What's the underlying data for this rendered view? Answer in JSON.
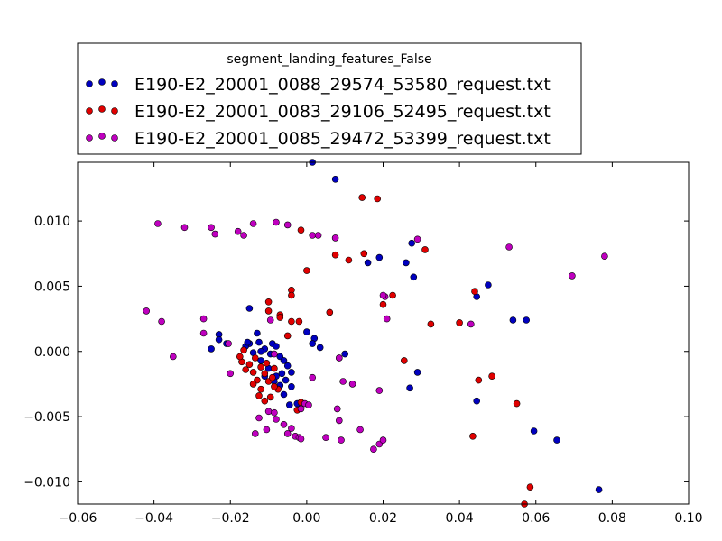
{
  "chart_data": {
    "type": "scatter",
    "title": "",
    "xlabel": "",
    "ylabel": "",
    "xlim": [
      -0.06,
      0.1
    ],
    "ylim": [
      -0.0117,
      0.0145
    ],
    "x_ticks": [
      -0.06,
      -0.04,
      -0.02,
      0.0,
      0.02,
      0.04,
      0.06,
      0.08,
      0.1
    ],
    "x_tick_labels": [
      "−0.06",
      "−0.04",
      "−0.02",
      "0.00",
      "0.02",
      "0.04",
      "0.06",
      "0.08",
      "0.10"
    ],
    "y_ticks": [
      -0.01,
      -0.005,
      0.0,
      0.005,
      0.01
    ],
    "y_tick_labels": [
      "−0.010",
      "−0.005",
      "0.000",
      "0.005",
      "0.010"
    ],
    "grid": false,
    "legend": {
      "title": "segment_landing_features_False",
      "position": "above plot, top-left"
    },
    "series": [
      {
        "name": "E190-E2_20001_0088_29574_53580_request.txt",
        "color": "#0000bf",
        "points": [
          [
            0.0015,
            0.0145
          ],
          [
            0.0075,
            0.0132
          ],
          [
            0.019,
            0.0072
          ],
          [
            0.016,
            0.0068
          ],
          [
            0.0275,
            0.0083
          ],
          [
            0.026,
            0.0068
          ],
          [
            0.028,
            0.0057
          ],
          [
            0.0475,
            0.0051
          ],
          [
            0.0445,
            0.0042
          ],
          [
            0.054,
            0.0024
          ],
          [
            0.0575,
            0.0024
          ],
          [
            0.0445,
            -0.0038
          ],
          [
            0.0595,
            -0.0061
          ],
          [
            0.0655,
            -0.0068
          ],
          [
            0.0765,
            -0.0106
          ],
          [
            0.029,
            -0.0016
          ],
          [
            0.027,
            -0.0028
          ],
          [
            -0.015,
            0.0033
          ],
          [
            -0.023,
            0.0013
          ],
          [
            -0.023,
            0.0009
          ],
          [
            -0.021,
            0.0006
          ],
          [
            -0.025,
            0.0002
          ],
          [
            -0.015,
            0.0006
          ],
          [
            -0.016,
            0.0004
          ],
          [
            -0.013,
            0.0014
          ],
          [
            -0.0125,
            0.0007
          ],
          [
            -0.011,
            0.0002
          ],
          [
            -0.012,
            0.0
          ],
          [
            -0.009,
            0.0006
          ],
          [
            -0.008,
            0.0004
          ],
          [
            -0.0095,
            -0.0002
          ],
          [
            -0.007,
            -0.0004
          ],
          [
            -0.006,
            -0.0007
          ],
          [
            -0.005,
            -0.0011
          ],
          [
            -0.004,
            -0.0016
          ],
          [
            -0.0065,
            -0.0017
          ],
          [
            -0.0055,
            -0.0022
          ],
          [
            -0.007,
            -0.0026
          ],
          [
            -0.006,
            -0.0033
          ],
          [
            -0.004,
            -0.0027
          ],
          [
            -0.0045,
            -0.0041
          ],
          [
            -0.0025,
            -0.004
          ],
          [
            0.0,
            0.0015
          ],
          [
            0.002,
            0.001
          ],
          [
            0.0015,
            0.0006
          ],
          [
            0.0035,
            0.0003
          ],
          [
            0.01,
            -0.0002
          ],
          [
            0.0085,
            -0.0005
          ],
          [
            -0.011,
            -0.0019
          ],
          [
            -0.012,
            -0.0007
          ],
          [
            -0.014,
            -0.0001
          ],
          [
            -0.0155,
            0.0007
          ],
          [
            -0.01,
            -0.0013
          ],
          [
            -0.008,
            -0.0019
          ],
          [
            -0.0085,
            -0.0023
          ]
        ]
      },
      {
        "name": "E190-E2_20001_0083_29106_52495_request.txt",
        "color": "#e00000",
        "points": [
          [
            0.0145,
            0.0118
          ],
          [
            0.0185,
            0.0117
          ],
          [
            -0.0015,
            0.0093
          ],
          [
            0.0075,
            0.0074
          ],
          [
            0.011,
            0.007
          ],
          [
            0.015,
            0.0075
          ],
          [
            0.031,
            0.0078
          ],
          [
            0.0,
            0.0062
          ],
          [
            -0.004,
            0.0047
          ],
          [
            -0.004,
            0.0043
          ],
          [
            -0.01,
            0.0038
          ],
          [
            -0.01,
            0.0031
          ],
          [
            -0.007,
            0.0028
          ],
          [
            -0.007,
            0.0026
          ],
          [
            -0.004,
            0.0023
          ],
          [
            -0.002,
            0.0023
          ],
          [
            0.006,
            0.003
          ],
          [
            0.02,
            0.0036
          ],
          [
            0.0225,
            0.0043
          ],
          [
            0.0325,
            0.0021
          ],
          [
            0.04,
            0.0022
          ],
          [
            0.044,
            0.0046
          ],
          [
            0.0255,
            -0.0007
          ],
          [
            0.045,
            -0.0022
          ],
          [
            0.0485,
            -0.0019
          ],
          [
            0.055,
            -0.004
          ],
          [
            0.0435,
            -0.0065
          ],
          [
            0.0585,
            -0.0104
          ],
          [
            0.057,
            -0.0117
          ],
          [
            -0.005,
            0.0012
          ],
          [
            -0.015,
            -0.001
          ],
          [
            -0.016,
            -0.0014
          ],
          [
            -0.014,
            -0.0016
          ],
          [
            -0.013,
            -0.0022
          ],
          [
            -0.014,
            -0.0025
          ],
          [
            -0.012,
            -0.0029
          ],
          [
            -0.01,
            -0.0023
          ],
          [
            -0.009,
            -0.002
          ],
          [
            -0.011,
            -0.0017
          ],
          [
            -0.012,
            -0.0012
          ],
          [
            -0.0105,
            -0.0009
          ],
          [
            -0.0085,
            -0.0013
          ],
          [
            -0.0075,
            -0.0029
          ],
          [
            -0.0095,
            -0.0035
          ],
          [
            -0.011,
            -0.0038
          ],
          [
            -0.0125,
            -0.0034
          ],
          [
            -0.0085,
            -0.0027
          ],
          [
            -0.0015,
            -0.0039
          ],
          [
            -0.0025,
            -0.0045
          ],
          [
            -0.017,
            -0.0008
          ],
          [
            -0.0175,
            -0.0004
          ],
          [
            -0.0165,
            0.0001
          ],
          [
            -0.0135,
            -0.0005
          ]
        ]
      },
      {
        "name": "E190-E2_20001_0085_29472_53399_request.txt",
        "color": "#bf00bf",
        "points": [
          [
            -0.039,
            0.0098
          ],
          [
            -0.032,
            0.0095
          ],
          [
            -0.025,
            0.0095
          ],
          [
            -0.024,
            0.009
          ],
          [
            -0.018,
            0.0092
          ],
          [
            -0.0165,
            0.0089
          ],
          [
            -0.014,
            0.0098
          ],
          [
            -0.008,
            0.0099
          ],
          [
            -0.005,
            0.0097
          ],
          [
            0.0015,
            0.0089
          ],
          [
            0.003,
            0.0089
          ],
          [
            0.0075,
            0.0087
          ],
          [
            0.029,
            0.0086
          ],
          [
            0.053,
            0.008
          ],
          [
            0.0695,
            0.0058
          ],
          [
            0.078,
            0.0073
          ],
          [
            0.0205,
            0.0042
          ],
          [
            0.02,
            0.0043
          ],
          [
            0.021,
            0.0025
          ],
          [
            0.043,
            0.0021
          ],
          [
            -0.042,
            0.0031
          ],
          [
            -0.038,
            0.0023
          ],
          [
            -0.035,
            -0.0004
          ],
          [
            -0.027,
            0.0025
          ],
          [
            -0.027,
            0.0014
          ],
          [
            -0.0205,
            0.0006
          ],
          [
            -0.02,
            -0.0017
          ],
          [
            -0.0095,
            0.0024
          ],
          [
            -0.0085,
            -0.0002
          ],
          [
            0.0085,
            -0.0005
          ],
          [
            0.0015,
            -0.002
          ],
          [
            0.0095,
            -0.0023
          ],
          [
            0.012,
            -0.0025
          ],
          [
            0.019,
            -0.003
          ],
          [
            -0.01,
            -0.0046
          ],
          [
            -0.0085,
            -0.0047
          ],
          [
            -0.0125,
            -0.0051
          ],
          [
            -0.008,
            -0.0052
          ],
          [
            -0.006,
            -0.0056
          ],
          [
            -0.004,
            -0.0059
          ],
          [
            -0.005,
            -0.0063
          ],
          [
            -0.003,
            -0.0065
          ],
          [
            -0.002,
            -0.0066
          ],
          [
            -0.0015,
            -0.0067
          ],
          [
            -0.0105,
            -0.006
          ],
          [
            -0.0135,
            -0.0063
          ],
          [
            -0.0005,
            -0.004
          ],
          [
            0.005,
            -0.0066
          ],
          [
            0.009,
            -0.0068
          ],
          [
            0.0085,
            -0.0053
          ],
          [
            0.008,
            -0.0044
          ],
          [
            0.014,
            -0.006
          ],
          [
            0.0175,
            -0.0075
          ],
          [
            0.019,
            -0.0071
          ],
          [
            0.02,
            -0.0068
          ],
          [
            0.0005,
            -0.0041
          ],
          [
            -0.0015,
            -0.0044
          ]
        ]
      }
    ]
  }
}
